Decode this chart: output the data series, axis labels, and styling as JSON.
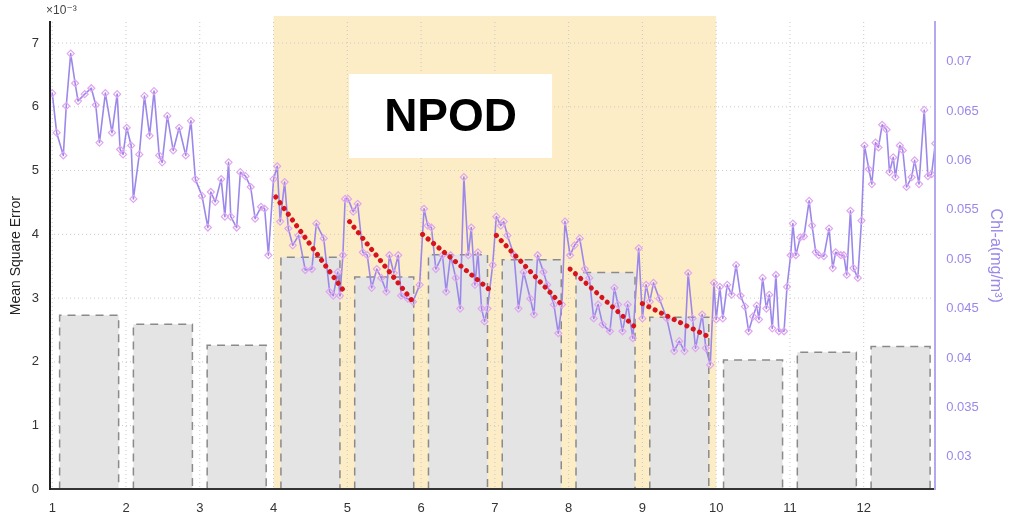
{
  "chart_data": {
    "type": "line",
    "xlabel": null,
    "ylabel": "Mean Square Error",
    "y2label": "Chl-a(mg/m³)",
    "annotations": [
      "×10⁻³"
    ],
    "xlim": [
      0.97,
      12.97
    ],
    "xticks": [
      1,
      2,
      3,
      4,
      5,
      6,
      7,
      8,
      9,
      10,
      11,
      12
    ],
    "ylim": [
      0,
      7.33
    ],
    "yticks": [
      0,
      1,
      2,
      3,
      4,
      5,
      6,
      7
    ],
    "y2lim": [
      0.0267,
      0.074
    ],
    "y2ticks": [
      0.03,
      0.035,
      0.04,
      0.045,
      0.05,
      0.055,
      0.06,
      0.065,
      0.07
    ],
    "grid": true,
    "bands": [
      {
        "axis": "x",
        "from": 4,
        "to": 10,
        "label": "NPOD",
        "color": "#fdedc6"
      }
    ],
    "series": [
      {
        "type": "bar",
        "color": "#e4e4e4",
        "x": [
          1.5,
          2.5,
          3.5,
          4.5,
          5.5,
          6.5,
          7.5,
          8.5,
          9.5,
          10.5,
          11.5,
          12.5
        ],
        "values": [
          2.73,
          2.59,
          2.26,
          3.64,
          3.33,
          3.68,
          3.6,
          3.4,
          2.7,
          2.03,
          2.15,
          2.24
        ]
      },
      {
        "axis": "y2",
        "color": "#9c88ea",
        "marker": "diamond",
        "line_style": "solid",
        "x": [
          1.0,
          1.06,
          1.15,
          1.19,
          1.25,
          1.31,
          1.35,
          1.44,
          1.53,
          1.59,
          1.64,
          1.72,
          1.81,
          1.88,
          1.92,
          1.96,
          2.01,
          2.07,
          2.1,
          2.18,
          2.25,
          2.32,
          2.38,
          2.45,
          2.49,
          2.56,
          2.64,
          2.72,
          2.81,
          2.88,
          2.94,
          3.03,
          3.11,
          3.15,
          3.21,
          3.29,
          3.34,
          3.39,
          3.42,
          3.5,
          3.55,
          3.62,
          3.69,
          3.75,
          3.83,
          3.88,
          3.93,
          4.0,
          4.05,
          4.09,
          4.15,
          4.2,
          4.26,
          4.34,
          4.43,
          4.52,
          4.58,
          4.68,
          4.76,
          4.81,
          4.87,
          4.9,
          4.94,
          4.97,
          5.01,
          5.08,
          5.14,
          5.21,
          5.27,
          5.33,
          5.4,
          5.46,
          5.53,
          5.57,
          5.63,
          5.69,
          5.73,
          5.82,
          5.89,
          5.98,
          6.04,
          6.09,
          6.14,
          6.2,
          6.29,
          6.34,
          6.4,
          6.47,
          6.53,
          6.58,
          6.64,
          6.68,
          6.73,
          6.77,
          6.82,
          6.86,
          6.9,
          6.97,
          7.02,
          7.08,
          7.12,
          7.17,
          7.26,
          7.32,
          7.39,
          7.48,
          7.53,
          7.58,
          7.66,
          7.71,
          7.8,
          7.86,
          7.91,
          7.95,
          8.02,
          8.08,
          8.15,
          8.22,
          8.28,
          8.34,
          8.4,
          8.46,
          8.56,
          8.62,
          8.67,
          8.73,
          8.8,
          8.87,
          8.95,
          9.0,
          9.05,
          9.1,
          9.15,
          9.23,
          9.33,
          9.43,
          9.5,
          9.57,
          9.62,
          9.68,
          9.72,
          9.81,
          9.86,
          9.92,
          9.97,
          10.0,
          10.05,
          10.09,
          10.15,
          10.21,
          10.27,
          10.33,
          10.39,
          10.44,
          10.5,
          10.55,
          10.58,
          10.63,
          10.68,
          10.72,
          10.76,
          10.81,
          10.85,
          10.92,
          10.96,
          11.01,
          11.04,
          11.08,
          11.14,
          11.19,
          11.26,
          11.3,
          11.35,
          11.39,
          11.46,
          11.53,
          11.58,
          11.62,
          11.69,
          11.73,
          11.77,
          11.82,
          11.86,
          11.92,
          11.97,
          12.01,
          12.07,
          12.11,
          12.16,
          12.2,
          12.25,
          12.31,
          12.35,
          12.4,
          12.43,
          12.49,
          12.53,
          12.58,
          12.65,
          12.69,
          12.75,
          12.82,
          12.87,
          12.92,
          12.97
        ],
        "values": [
          0.0668,
          0.0628,
          0.0605,
          0.0655,
          0.0708,
          0.0678,
          0.066,
          0.0667,
          0.0673,
          0.0656,
          0.0618,
          0.0668,
          0.0628,
          0.0667,
          0.0611,
          0.0606,
          0.0633,
          0.0615,
          0.0561,
          0.0606,
          0.0665,
          0.0625,
          0.067,
          0.0605,
          0.0598,
          0.0645,
          0.061,
          0.0633,
          0.0605,
          0.064,
          0.0581,
          0.0564,
          0.0532,
          0.0568,
          0.0558,
          0.0581,
          0.0543,
          0.0598,
          0.0543,
          0.0532,
          0.0588,
          0.0584,
          0.0573,
          0.0541,
          0.0553,
          0.0551,
          0.0504,
          0.0581,
          0.0594,
          0.0538,
          0.0578,
          0.0531,
          0.0514,
          0.0524,
          0.0489,
          0.049,
          0.0536,
          0.0521,
          0.0467,
          0.0463,
          0.0487,
          0.0463,
          0.0504,
          0.0561,
          0.0561,
          0.0548,
          0.0556,
          0.0507,
          0.0504,
          0.0471,
          0.049,
          0.0481,
          0.0467,
          0.0504,
          0.0486,
          0.0504,
          0.0463,
          0.046,
          0.0457,
          0.0474,
          0.0551,
          0.0534,
          0.0532,
          0.049,
          0.0504,
          0.0467,
          0.0504,
          0.0481,
          0.045,
          0.0583,
          0.0504,
          0.0532,
          0.0474,
          0.0507,
          0.045,
          0.0437,
          0.045,
          0.0494,
          0.0543,
          0.0534,
          0.0538,
          0.0524,
          0.0504,
          0.045,
          0.0487,
          0.046,
          0.0444,
          0.0504,
          0.0487,
          0.0474,
          0.0454,
          0.0425,
          0.0454,
          0.0538,
          0.0504,
          0.0514,
          0.0521,
          0.049,
          0.0481,
          0.044,
          0.0454,
          0.0434,
          0.0427,
          0.0471,
          0.0454,
          0.0427,
          0.0454,
          0.042,
          0.0511,
          0.044,
          0.0474,
          0.0457,
          0.0476,
          0.046,
          0.044,
          0.0407,
          0.0417,
          0.0407,
          0.0486,
          0.044,
          0.041,
          0.0444,
          0.041,
          0.0393,
          0.0476,
          0.0439,
          0.0472,
          0.044,
          0.0474,
          0.0464,
          0.0494,
          0.0463,
          0.0452,
          0.0427,
          0.0442,
          0.0453,
          0.0439,
          0.0481,
          0.045,
          0.0464,
          0.043,
          0.0484,
          0.0427,
          0.0427,
          0.0472,
          0.0504,
          0.0536,
          0.0504,
          0.0522,
          0.0523,
          0.0559,
          0.0534,
          0.0507,
          0.0504,
          0.0503,
          0.0531,
          0.0491,
          0.0507,
          0.0504,
          0.0504,
          0.0484,
          0.0549,
          0.0491,
          0.0481,
          0.0539,
          0.0615,
          0.0591,
          0.0576,
          0.0618,
          0.0613,
          0.0636,
          0.0631,
          0.0588,
          0.0603,
          0.0583,
          0.0615,
          0.061,
          0.0573,
          0.0583,
          0.06,
          0.0576,
          0.0651,
          0.0584,
          0.0586,
          0.0617
        ]
      },
      {
        "type": "line",
        "axis": "y2",
        "color": "#d7141e",
        "marker": "none",
        "line_style": "dotted",
        "x": [
          4.03,
          4.94
        ],
        "values": [
          0.0563,
          0.0469
        ]
      },
      {
        "type": "line",
        "axis": "y2",
        "color": "#d7141e",
        "marker": "none",
        "line_style": "dotted",
        "x": [
          5.03,
          5.9
        ],
        "values": [
          0.0538,
          0.0456
        ]
      },
      {
        "type": "line",
        "axis": "y2",
        "color": "#d7141e",
        "marker": "none",
        "line_style": "dotted",
        "x": [
          6.02,
          6.93
        ],
        "values": [
          0.0525,
          0.0469
        ]
      },
      {
        "type": "line",
        "axis": "y2",
        "color": "#d7141e",
        "marker": "none",
        "line_style": "dotted",
        "x": [
          7.02,
          7.93
        ],
        "values": [
          0.0524,
          0.0452
        ]
      },
      {
        "type": "line",
        "axis": "y2",
        "color": "#d7141e",
        "marker": "none",
        "line_style": "dotted",
        "x": [
          8.02,
          8.92
        ],
        "values": [
          0.049,
          0.043
        ]
      },
      {
        "type": "line",
        "axis": "y2",
        "color": "#d7141e",
        "marker": "none",
        "line_style": "dotted",
        "x": [
          9.0,
          9.91
        ],
        "values": [
          0.0455,
          0.0421
        ]
      }
    ]
  }
}
